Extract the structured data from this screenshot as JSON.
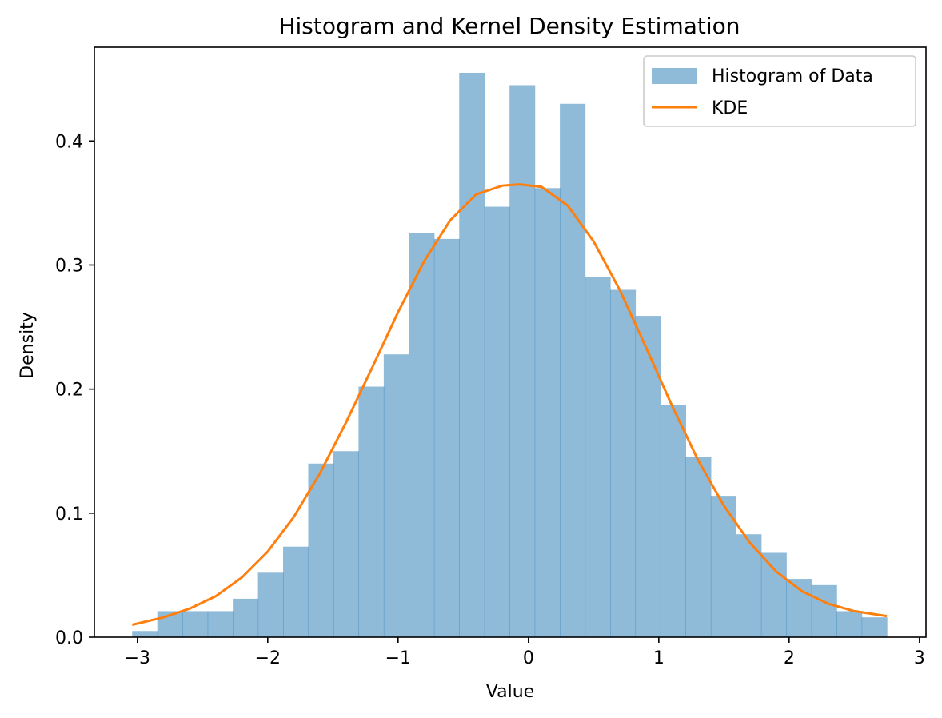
{
  "chart_data": {
    "type": "histogram",
    "title": "Histogram and Kernel Density Estimation",
    "xlabel": "Value",
    "ylabel": "Density",
    "xlim": [
      -3.33,
      3.05
    ],
    "ylim": [
      0.0,
      0.4756
    ],
    "xticks": [
      -3,
      -2,
      -1,
      0,
      1,
      2,
      3
    ],
    "xtick_labels": [
      "−3",
      "−2",
      "−1",
      "0",
      "1",
      "2",
      "3"
    ],
    "yticks": [
      0.0,
      0.1,
      0.2,
      0.3,
      0.4
    ],
    "ytick_labels": [
      "0.0",
      "0.1",
      "0.2",
      "0.3",
      "0.4"
    ],
    "grid": false,
    "legend": {
      "placement": "top-right",
      "entries": [
        "Histogram of Data",
        "KDE"
      ]
    },
    "colors": {
      "histogram": "#1f77b4",
      "histogram_alpha": 0.5,
      "kde": "#ff7f0e"
    },
    "histogram": {
      "name": "Histogram of Data",
      "bin_edges": [
        -3.04,
        -2.847,
        -2.654,
        -2.461,
        -2.268,
        -2.075,
        -1.882,
        -1.689,
        -1.496,
        -1.303,
        -1.11,
        -0.917,
        -0.724,
        -0.531,
        -0.338,
        -0.145,
        0.048,
        0.241,
        0.434,
        0.627,
        0.82,
        1.013,
        1.206,
        1.399,
        1.592,
        1.785,
        1.978,
        2.171,
        2.364,
        2.557,
        2.75
      ],
      "densities": [
        0.005,
        0.021,
        0.021,
        0.021,
        0.031,
        0.052,
        0.073,
        0.14,
        0.15,
        0.202,
        0.228,
        0.326,
        0.321,
        0.455,
        0.347,
        0.445,
        0.362,
        0.43,
        0.29,
        0.28,
        0.259,
        0.187,
        0.145,
        0.114,
        0.083,
        0.068,
        0.047,
        0.042,
        0.021,
        0.016
      ]
    },
    "kde": {
      "name": "KDE",
      "x": [
        -3.04,
        -2.8,
        -2.6,
        -2.4,
        -2.2,
        -2.0,
        -1.8,
        -1.6,
        -1.4,
        -1.2,
        -1.0,
        -0.8,
        -0.6,
        -0.4,
        -0.2,
        -0.07,
        0.1,
        0.3,
        0.5,
        0.7,
        0.9,
        1.1,
        1.3,
        1.5,
        1.7,
        1.9,
        2.1,
        2.3,
        2.5,
        2.75
      ],
      "y": [
        0.01,
        0.016,
        0.023,
        0.033,
        0.048,
        0.069,
        0.097,
        0.132,
        0.173,
        0.217,
        0.262,
        0.303,
        0.336,
        0.357,
        0.364,
        0.365,
        0.363,
        0.348,
        0.319,
        0.28,
        0.234,
        0.187,
        0.143,
        0.106,
        0.076,
        0.053,
        0.037,
        0.027,
        0.021,
        0.017
      ]
    }
  }
}
